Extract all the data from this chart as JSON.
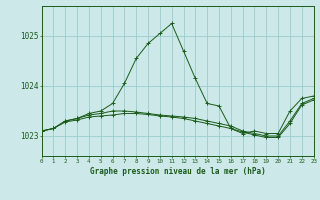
{
  "title": "Graphe pression niveau de la mer (hPa)",
  "background_color": "#cce8e8",
  "grid_color": "#99cccc",
  "line_color": "#1a5c1a",
  "xlim": [
    0,
    23
  ],
  "ylim": [
    1022.6,
    1025.6
  ],
  "yticks": [
    1023,
    1024,
    1025
  ],
  "xticks": [
    0,
    1,
    2,
    3,
    4,
    5,
    6,
    7,
    8,
    9,
    10,
    11,
    12,
    13,
    14,
    15,
    16,
    17,
    18,
    19,
    20,
    21,
    22,
    23
  ],
  "hours": [
    0,
    1,
    2,
    3,
    4,
    5,
    6,
    7,
    8,
    9,
    10,
    11,
    12,
    13,
    14,
    15,
    16,
    17,
    18,
    19,
    20,
    21,
    22,
    23
  ],
  "line1": [
    1023.1,
    1023.15,
    1023.3,
    1023.35,
    1023.45,
    1023.5,
    1023.65,
    1024.05,
    1024.55,
    1024.85,
    1025.05,
    1025.25,
    1024.7,
    1024.15,
    1023.65,
    1023.6,
    1023.15,
    1023.05,
    1023.1,
    1023.05,
    1023.05,
    1023.5,
    1023.75,
    1023.8
  ],
  "line2": [
    1023.1,
    1023.15,
    1023.3,
    1023.35,
    1023.42,
    1023.45,
    1023.5,
    1023.5,
    1023.48,
    1023.45,
    1023.42,
    1023.4,
    1023.38,
    1023.35,
    1023.3,
    1023.25,
    1023.2,
    1023.1,
    1023.05,
    1023.0,
    1023.0,
    1023.3,
    1023.65,
    1023.75
  ],
  "line3": [
    1023.1,
    1023.15,
    1023.28,
    1023.32,
    1023.38,
    1023.4,
    1023.42,
    1023.45,
    1023.45,
    1023.43,
    1023.4,
    1023.38,
    1023.35,
    1023.3,
    1023.25,
    1023.2,
    1023.15,
    1023.08,
    1023.02,
    1022.97,
    1022.97,
    1023.25,
    1023.62,
    1023.72
  ]
}
